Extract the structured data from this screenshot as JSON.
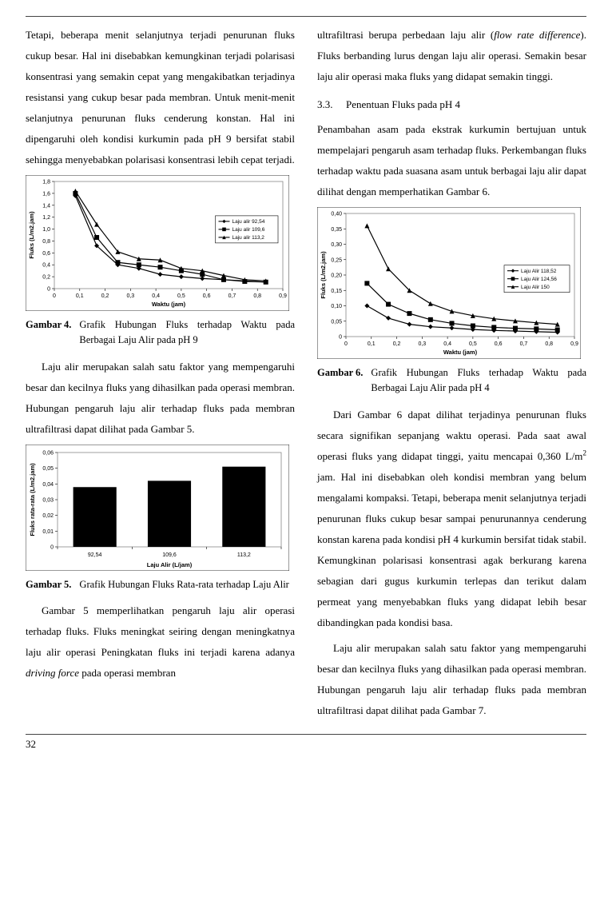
{
  "pageNumber": "32",
  "leftCol": {
    "para1": "Tetapi, beberapa menit selanjutnya terjadi penurunan fluks cukup besar. Hal ini disebabkan kemungkinan terjadi polarisasi konsentrasi yang semakin cepat yang mengakibatkan terjadinya resistansi yang cukup besar pada membran. Untuk menit-menit selanjutnya penurunan fluks cenderung konstan. Hal ini dipengaruhi oleh kondisi kurkumin pada pH 9 bersifat stabil sehingga menyebabkan polarisasi konsentrasi lebih cepat terjadi.",
    "fig4": {
      "label": "Gambar 4.",
      "caption": "Grafik Hubungan Fluks terhadap Waktu pada Berbagai Laju Alir pada pH 9",
      "chart": {
        "type": "line",
        "xLabel": "Waktu (jam)",
        "yLabel": "Fluks (L/m2.jam)",
        "xlim": [
          0,
          0.9
        ],
        "ylim": [
          0,
          1.8
        ],
        "xTickStep": 0.1,
        "yTickStep": 0.2,
        "background_color": "#ffffff",
        "axis_color": "#000000",
        "line_width": 1.2,
        "marker_size": 3.0,
        "legend_border": "#000000",
        "series": [
          {
            "name": "Laju alir 92,54",
            "marker": "diamond",
            "color": "#000000",
            "points": [
              [
                0.083,
                1.56
              ],
              [
                0.167,
                0.72
              ],
              [
                0.25,
                0.4
              ],
              [
                0.333,
                0.34
              ],
              [
                0.417,
                0.24
              ],
              [
                0.5,
                0.2
              ],
              [
                0.583,
                0.17
              ],
              [
                0.667,
                0.15
              ],
              [
                0.75,
                0.13
              ],
              [
                0.833,
                0.11
              ]
            ]
          },
          {
            "name": "Laju alir 109,6",
            "marker": "square",
            "color": "#000000",
            "points": [
              [
                0.083,
                1.6
              ],
              [
                0.167,
                0.86
              ],
              [
                0.25,
                0.44
              ],
              [
                0.333,
                0.4
              ],
              [
                0.417,
                0.36
              ],
              [
                0.5,
                0.3
              ],
              [
                0.583,
                0.24
              ],
              [
                0.667,
                0.15
              ],
              [
                0.75,
                0.12
              ],
              [
                0.833,
                0.11
              ]
            ]
          },
          {
            "name": "Laju alir 113,2",
            "marker": "triangle",
            "color": "#000000",
            "points": [
              [
                0.083,
                1.64
              ],
              [
                0.167,
                1.08
              ],
              [
                0.25,
                0.62
              ],
              [
                0.333,
                0.5
              ],
              [
                0.417,
                0.48
              ],
              [
                0.5,
                0.34
              ],
              [
                0.583,
                0.3
              ],
              [
                0.667,
                0.22
              ],
              [
                0.75,
                0.15
              ],
              [
                0.833,
                0.13
              ]
            ]
          }
        ]
      }
    },
    "para2": "Laju alir merupakan salah satu faktor yang mempengaruhi besar dan kecilnya fluks yang dihasilkan pada operasi membran. Hubungan pengaruh laju alir terhadap fluks pada membran ultrafiltrasi dapat dilihat pada Gambar 5.",
    "fig5": {
      "label": "Gambar 5.",
      "caption": "Grafik Hubungan Fluks Rata-rata terhadap Laju Alir",
      "chart": {
        "type": "bar",
        "xLabel": "Laju Alir (L/jam)",
        "yLabel": "Fluks rata-rata (L/m2.jam)",
        "categories": [
          "92,54",
          "109,6",
          "113,2"
        ],
        "values": [
          0.038,
          0.042,
          0.051
        ],
        "ylim": [
          0,
          0.06
        ],
        "yTickStep": 0.01,
        "bar_color": "#000000",
        "bar_width": 0.58,
        "background_color": "#ffffff",
        "axis_color": "#000000"
      }
    },
    "para3_part1": "Gambar 5 memperlihatkan pengaruh laju alir operasi terhadap fluks. Fluks meningkat seiring dengan meningkatnya laju alir operasi  Peningkatan fluks ini terjadi karena adanya ",
    "para3_italic": "driving force",
    "para3_part2": " pada operasi membran"
  },
  "rightCol": {
    "para1_part1": "ultrafiltrasi berupa perbedaan laju alir (",
    "para1_italic1": "flow rate difference",
    "para1_part2": "). Fluks berbanding lurus dengan laju alir operasi. Semakin besar laju alir operasi maka fluks yang didapat semakin tinggi.",
    "section": {
      "num": "3.3.",
      "title": "Penentuan Fluks pada pH 4"
    },
    "para2": "Penambahan asam pada ekstrak kurkumin bertujuan untuk mempelajari pengaruh asam terhadap fluks. Perkembangan fluks terhadap waktu pada suasana asam untuk berbagai laju alir dapat dilihat dengan memperhatikan Gambar 6.",
    "fig6": {
      "label": "Gambar 6.",
      "caption": "Grafik Hubungan Fluks terhadap Waktu pada Berbagai  Laju Alir pada pH 4",
      "chart": {
        "type": "line",
        "xLabel": "Waktu (jam)",
        "yLabel": "Fluks (L/m2.jam)",
        "xlim": [
          0,
          0.9
        ],
        "ylim": [
          0,
          0.4
        ],
        "xTickStep": 0.1,
        "yTickStep": 0.05,
        "background_color": "#ffffff",
        "axis_color": "#000000",
        "line_width": 1.2,
        "marker_size": 3.0,
        "legend_border": "#000000",
        "series": [
          {
            "name": "Laju Alir 118,52",
            "marker": "diamond",
            "color": "#000000",
            "points": [
              [
                0.083,
                0.1
              ],
              [
                0.167,
                0.06
              ],
              [
                0.25,
                0.04
              ],
              [
                0.333,
                0.032
              ],
              [
                0.417,
                0.028
              ],
              [
                0.5,
                0.023
              ],
              [
                0.583,
                0.02
              ],
              [
                0.667,
                0.018
              ],
              [
                0.75,
                0.016
              ],
              [
                0.833,
                0.014
              ]
            ]
          },
          {
            "name": "Laju Alir 124,56",
            "marker": "square",
            "color": "#000000",
            "points": [
              [
                0.083,
                0.173
              ],
              [
                0.167,
                0.105
              ],
              [
                0.25,
                0.075
              ],
              [
                0.333,
                0.055
              ],
              [
                0.417,
                0.043
              ],
              [
                0.5,
                0.035
              ],
              [
                0.583,
                0.03
              ],
              [
                0.667,
                0.027
              ],
              [
                0.75,
                0.025
              ],
              [
                0.833,
                0.022
              ]
            ]
          },
          {
            "name": "Laju Alir 150",
            "marker": "triangle",
            "color": "#000000",
            "points": [
              [
                0.083,
                0.36
              ],
              [
                0.167,
                0.22
              ],
              [
                0.25,
                0.15
              ],
              [
                0.333,
                0.107
              ],
              [
                0.417,
                0.082
              ],
              [
                0.5,
                0.068
              ],
              [
                0.583,
                0.058
              ],
              [
                0.667,
                0.051
              ],
              [
                0.75,
                0.045
              ],
              [
                0.833,
                0.04
              ]
            ]
          }
        ]
      }
    },
    "para3_part1": "Dari Gambar 6 dapat dilihat terjadinya penurunan fluks secara signifikan sepanjang waktu operasi. Pada saat awal operasi fluks yang didapat tinggi, yaitu mencapai 0,360 L/m",
    "para3_sup": "2",
    "para3_part2": " jam. Hal ini disebabkan oleh kondisi membran yang belum mengalami kompaksi. Tetapi, beberapa menit selanjutnya terjadi penurunan fluks cukup besar sampai penurunannya cenderung konstan karena pada kondisi pH 4 kurkumin bersifat tidak stabil. Kemungkinan polarisasi konsentrasi agak berkurang karena sebagian dari gugus kurkumin terlepas dan terikut dalam permeat yang menyebabkan fluks yang didapat lebih besar dibandingkan pada kondisi basa.",
    "para4": "Laju alir merupakan salah satu faktor yang mempengaruhi besar dan kecilnya fluks yang dihasilkan pada operasi membran. Hubungan pengaruh laju alir terhadap fluks pada membran ultrafiltrasi dapat dilihat pada Gambar 7."
  }
}
